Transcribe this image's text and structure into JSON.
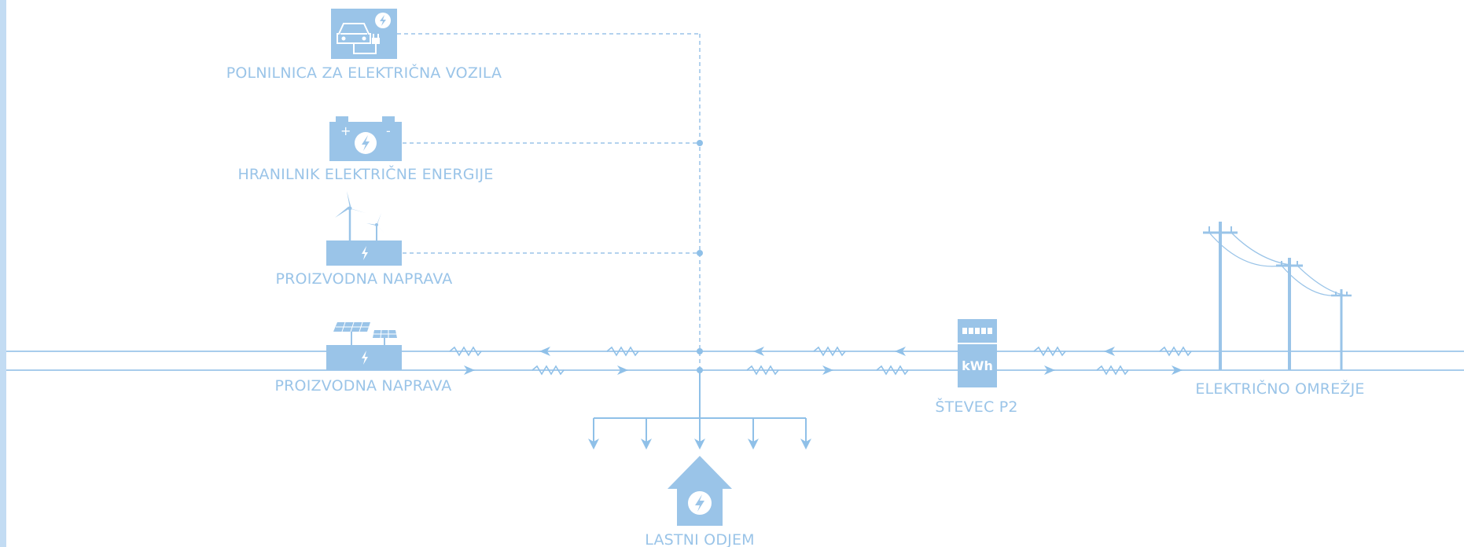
{
  "colors": {
    "accent": "#9ac4e8",
    "line": "#8fc0e8",
    "sidebar": "#c3dcf3"
  },
  "nodes": {
    "ev_charger": {
      "label": "POLNILNICA ZA ELEKTRIČNA VOZILA",
      "icon": "ev-charger-icon"
    },
    "battery": {
      "label": "HRANILNIK ELEKTRIČNE ENERGIJE",
      "icon": "battery-icon"
    },
    "wind": {
      "label": "PROIZVODNA NAPRAVA",
      "icon": "wind-turbine-icon"
    },
    "solar": {
      "label": "PROIZVODNA NAPRAVA",
      "icon": "solar-panel-icon"
    },
    "meter": {
      "label": "ŠTEVEC P2",
      "display_text": "kWh",
      "icon": "electricity-meter-icon"
    },
    "grid": {
      "label": "ELEKTRIČNO OMREŽJE",
      "icon": "power-pole-icon"
    },
    "consumption": {
      "label": "LASTNI ODJEM",
      "icon": "house-icon"
    }
  }
}
